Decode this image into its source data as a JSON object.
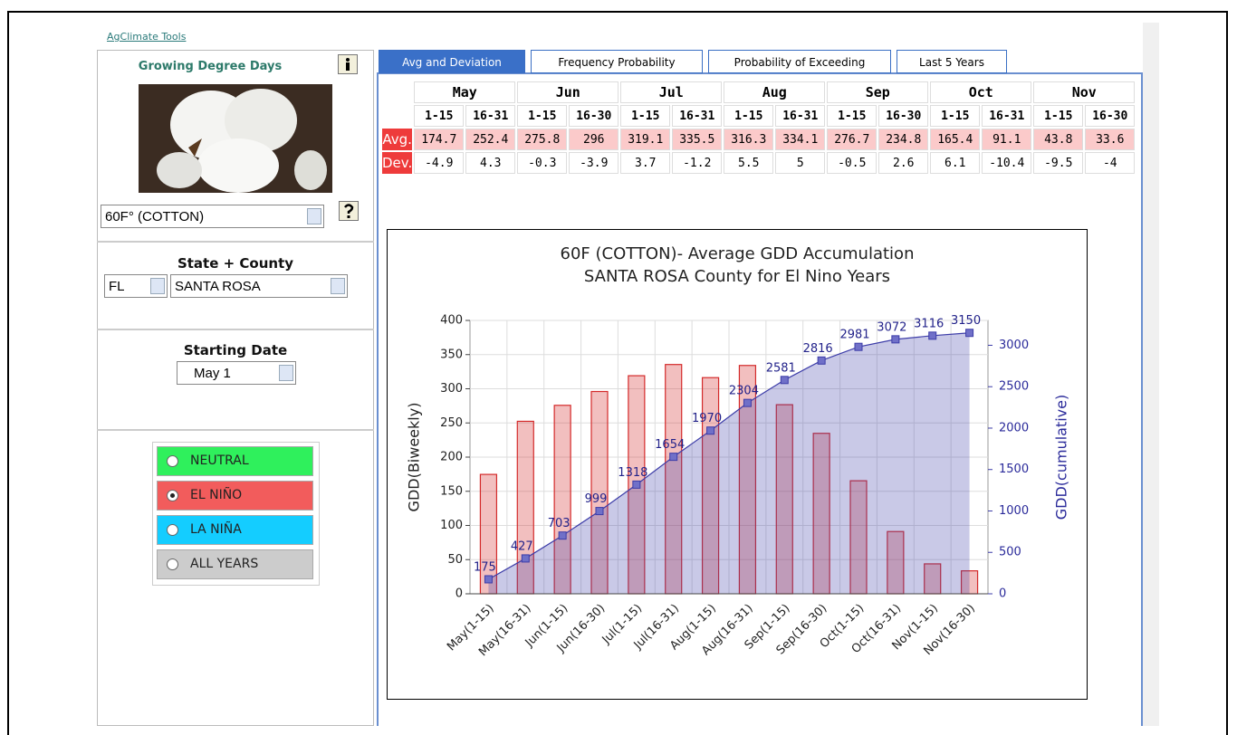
{
  "header": {
    "link": "AgClimate Tools"
  },
  "sidebar": {
    "title": "Growing Degree Days",
    "crop": "60F° (COTTON)",
    "state_county_label": "State + County",
    "state": "FL",
    "county": "SANTA ROSA",
    "starting_date_label": "Starting Date",
    "starting_date": "May 1",
    "enso_options": [
      {
        "label": "NEUTRAL",
        "color": "#2ff05c",
        "selected": false
      },
      {
        "label": "EL NIÑO",
        "color": "#f25c5c",
        "selected": true
      },
      {
        "label": "LA NIÑA",
        "color": "#14cdff",
        "selected": false
      },
      {
        "label": "ALL YEARS",
        "color": "#cccccc",
        "selected": false
      }
    ]
  },
  "tabs": [
    "Avg and Deviation",
    "Frequency Probability",
    "Probability of Exceeding",
    "Last 5 Years"
  ],
  "table": {
    "months": [
      "May",
      "Jun",
      "Jul",
      "Aug",
      "Sep",
      "Oct",
      "Nov"
    ],
    "periods": [
      "1-15",
      "16-31",
      "1-15",
      "16-30",
      "1-15",
      "16-31",
      "1-15",
      "16-31",
      "1-15",
      "16-30",
      "1-15",
      "16-31",
      "1-15",
      "16-30"
    ],
    "rows": [
      {
        "label": "Avg.",
        "values": [
          174.7,
          252.4,
          275.8,
          296,
          319.1,
          335.5,
          316.3,
          334.1,
          276.7,
          234.8,
          165.4,
          91.1,
          43.8,
          33.6
        ]
      },
      {
        "label": "Dev.",
        "values": [
          -4.9,
          4.3,
          -0.3,
          -3.9,
          3.7,
          -1.2,
          5.5,
          5,
          -0.5,
          2.6,
          6.1,
          -10.4,
          -9.5,
          -4
        ]
      }
    ]
  },
  "chart_data": {
    "type": "bar",
    "title": "60F (COTTON)- Average GDD Accumulation",
    "subtitle": "SANTA ROSA County for El Nino Years",
    "ylabel": "GDD(Biweekly)",
    "y2label": "GDD(cumulative)",
    "categories": [
      "May(1-15)",
      "May(16-31)",
      "Jun(1-15)",
      "Jun(16-30)",
      "Jul(1-15)",
      "Jul(16-31)",
      "Aug(1-15)",
      "Aug(16-31)",
      "Sep(1-15)",
      "Sep(16-30)",
      "Oct(1-15)",
      "Oct(16-31)",
      "Nov(1-15)",
      "Nov(16-30)"
    ],
    "series": [
      {
        "type": "bar",
        "color": "#d42a2a",
        "values": [
          174.7,
          252.4,
          275.8,
          296,
          319.1,
          335.5,
          316.3,
          334.1,
          276.7,
          234.8,
          165.4,
          91.1,
          43.8,
          33.6
        ]
      },
      {
        "type": "area",
        "axis": "y2",
        "color": "#3c3ca8",
        "values": [
          175,
          427,
          703,
          999,
          1318,
          1654,
          1970,
          2304,
          2581,
          2816,
          2981,
          3072,
          3116,
          3150
        ]
      }
    ],
    "ylim": [
      0,
      400
    ],
    "yticks": [
      0,
      50,
      100,
      150,
      200,
      250,
      300,
      350,
      400
    ],
    "y2lim": [
      0,
      3300
    ],
    "y2ticks": [
      0,
      500,
      1000,
      1500,
      2000,
      2500,
      3000
    ],
    "grid": true
  }
}
